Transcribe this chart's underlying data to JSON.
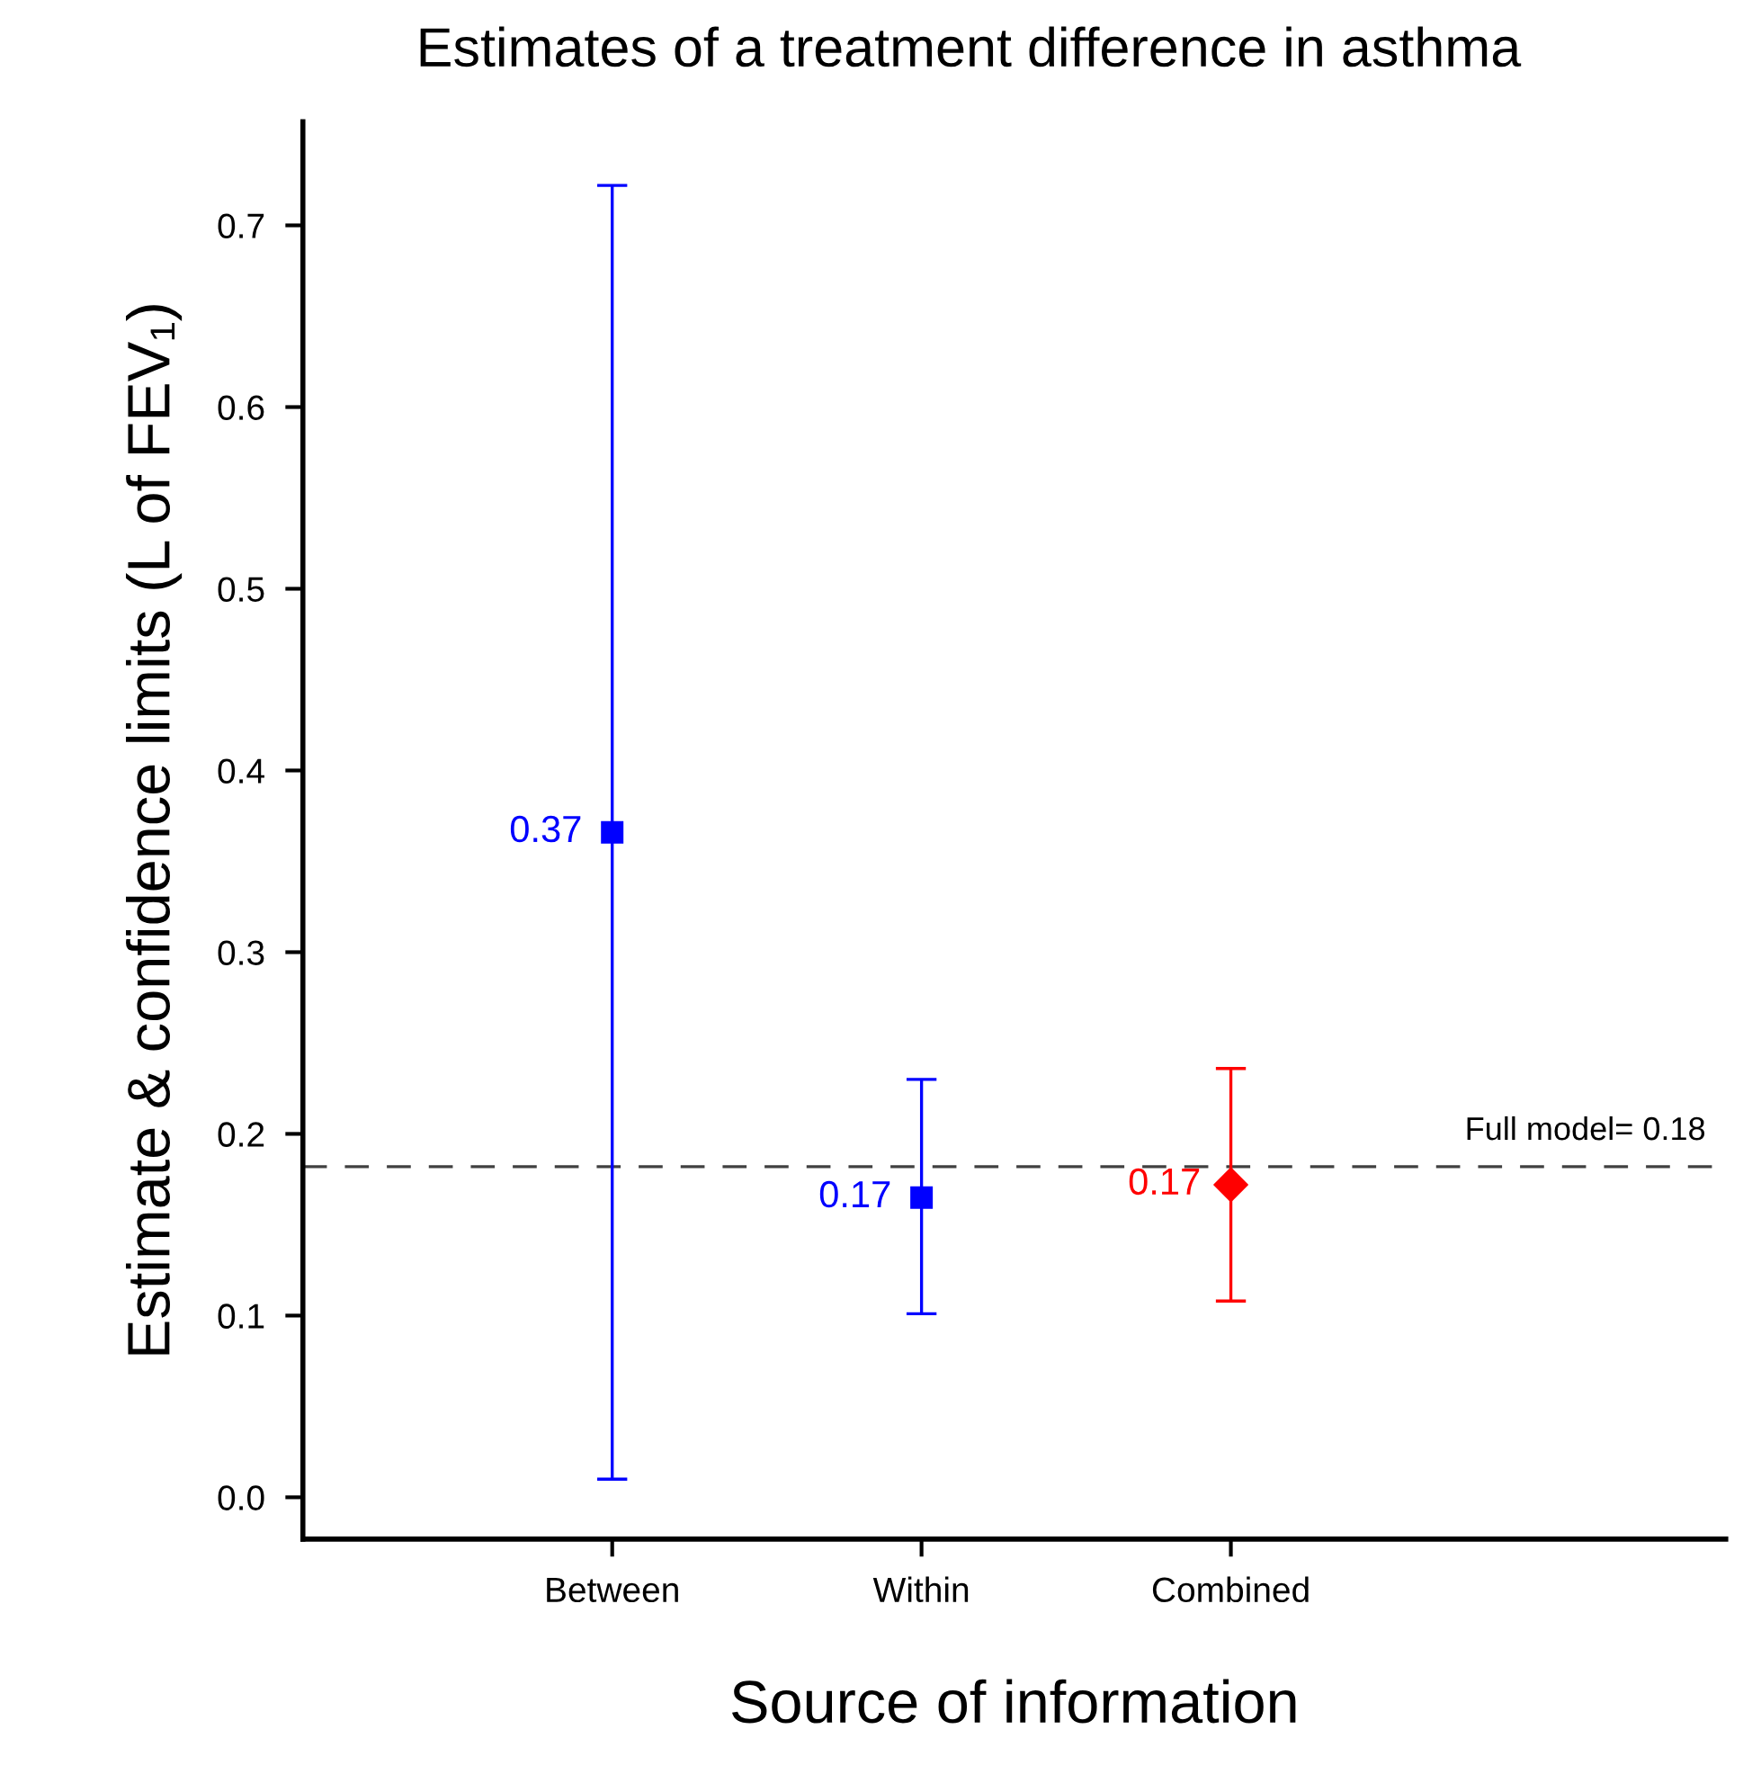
{
  "chart_data": {
    "type": "scatter",
    "title": "Estimates of a treatment difference in asthma",
    "xlabel": "Source of information",
    "ylabel": "Estimate & confidence limits (L of FEV₁)",
    "categories": [
      "Between",
      "Within",
      "Combined"
    ],
    "series": [
      {
        "color": "#0000ff",
        "marker": "square",
        "values": [
          0.366,
          0.165,
          null
        ],
        "errors": [
          [
            0.01,
            0.722
          ],
          [
            0.101,
            0.23
          ],
          null
        ],
        "value_labels": [
          "0.37",
          "0.17",
          null
        ]
      },
      {
        "color": "#ff0000",
        "marker": "diamond",
        "values": [
          null,
          null,
          0.172
        ],
        "errors": [
          null,
          null,
          [
            0.108,
            0.236
          ]
        ],
        "value_labels": [
          null,
          null,
          "0.17"
        ]
      }
    ],
    "ylim": [
      -0.023,
      0.757
    ],
    "yticks": [
      {
        "value": 0,
        "label": "0.0"
      },
      0.1,
      0.2,
      0.3,
      0.4,
      0.5,
      0.6,
      0.7
    ],
    "ref_lines": [
      {
        "axis": "y",
        "value": 0.182,
        "label": "Full model= 0.18",
        "color": "#404040",
        "line_style": "dashed"
      }
    ],
    "grid": false,
    "legend": false
  }
}
